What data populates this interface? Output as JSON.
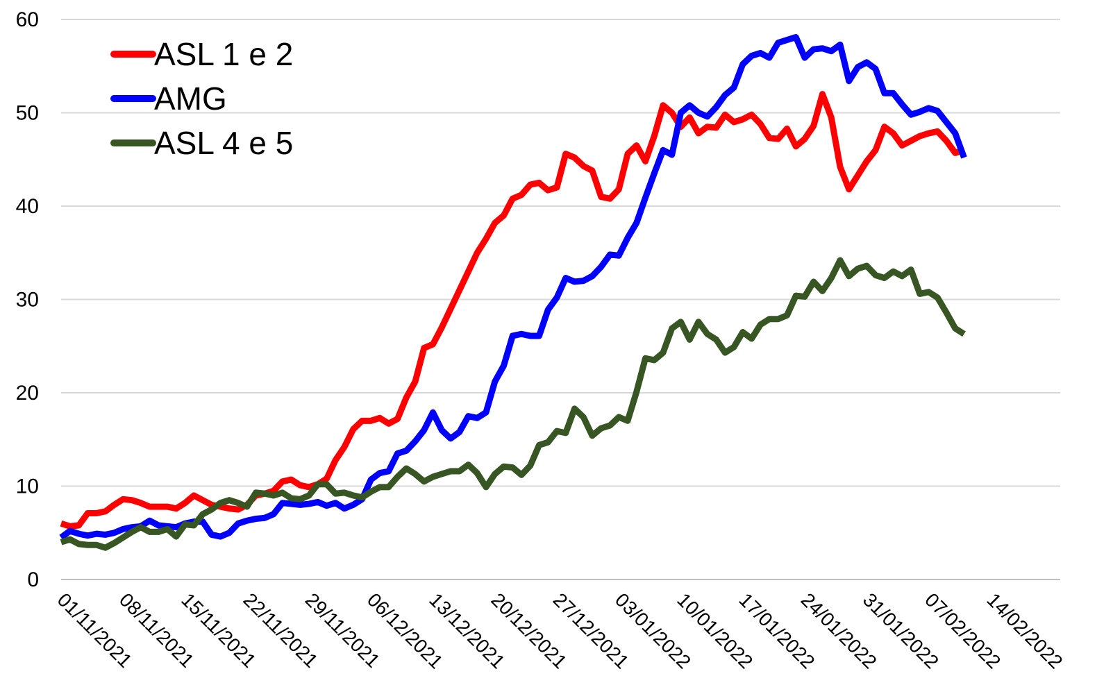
{
  "chart_data": {
    "type": "line",
    "categories": [
      "01/11/2021",
      null,
      null,
      null,
      null,
      null,
      null,
      "08/11/2021",
      null,
      null,
      null,
      null,
      null,
      null,
      "15/11/2021",
      null,
      null,
      null,
      null,
      null,
      null,
      "22/11/2021",
      null,
      null,
      null,
      null,
      null,
      null,
      "29/11/2021",
      null,
      null,
      null,
      null,
      null,
      null,
      "06/12/2021",
      null,
      null,
      null,
      null,
      null,
      null,
      "13/12/2021",
      null,
      null,
      null,
      null,
      null,
      null,
      "20/12/2021",
      null,
      null,
      null,
      null,
      null,
      null,
      "27/12/2021",
      null,
      null,
      null,
      null,
      null,
      null,
      "03/01/2022",
      null,
      null,
      null,
      null,
      null,
      null,
      "10/01/2022",
      null,
      null,
      null,
      null,
      null,
      null,
      "17/01/2022",
      null,
      null,
      null,
      null,
      null,
      null,
      "24/01/2022",
      null,
      null,
      null,
      null,
      null,
      null,
      "31/01/2022",
      null,
      null,
      null,
      null,
      null,
      null,
      "07/02/2022",
      null,
      null,
      null,
      null,
      null,
      null,
      "14/02/2022"
    ],
    "series": [
      {
        "name": "ASL 1 e 2",
        "color": "#ff0000",
        "values": [
          6.0,
          5.7,
          5.8,
          7.1,
          7.1,
          7.3,
          8.0,
          8.6,
          8.5,
          8.2,
          7.8,
          7.8,
          7.8,
          7.6,
          8.2,
          9.0,
          8.5,
          8.0,
          7.8,
          7.6,
          7.5,
          8.0,
          9.0,
          9.2,
          9.5,
          10.5,
          10.7,
          10.1,
          9.9,
          10.2,
          10.8,
          12.8,
          14.2,
          16.1,
          17.0,
          17.0,
          17.3,
          16.7,
          17.2,
          19.5,
          21.2,
          24.8,
          25.2,
          27.0,
          29.0,
          31.0,
          33.0,
          35.0,
          36.5,
          38.2,
          39.0,
          40.8,
          41.2,
          42.3,
          42.5,
          41.7,
          42.0,
          45.6,
          45.2,
          44.3,
          43.8,
          41.0,
          40.8,
          41.8,
          45.6,
          46.5,
          44.8,
          47.5,
          50.8,
          50.0,
          48.5,
          49.5,
          47.8,
          48.5,
          48.4,
          49.8,
          49.0,
          49.3,
          49.8,
          48.8,
          47.3,
          47.2,
          48.3,
          46.4,
          47.2,
          48.6,
          52.0,
          49.5,
          44.2,
          41.8,
          43.3,
          44.8,
          46.0,
          48.5,
          47.8,
          46.5,
          47.0,
          47.5,
          47.8,
          48.0,
          47.0,
          45.7,
          46.0,
          null,
          null,
          null
        ]
      },
      {
        "name": "AMG",
        "color": "#0000ff",
        "values": [
          4.5,
          5.2,
          4.9,
          4.7,
          4.9,
          4.8,
          5.0,
          5.4,
          5.6,
          5.7,
          6.3,
          5.8,
          5.7,
          5.6,
          6.0,
          6.2,
          6.2,
          4.8,
          4.6,
          5.0,
          6.0,
          6.3,
          6.5,
          6.6,
          7.0,
          8.2,
          8.1,
          8.0,
          8.1,
          8.3,
          7.9,
          8.2,
          7.6,
          8.0,
          8.6,
          10.7,
          11.4,
          11.6,
          13.5,
          13.8,
          14.8,
          16.0,
          17.9,
          16.0,
          15.1,
          15.8,
          17.5,
          17.3,
          17.9,
          21.2,
          22.9,
          26.1,
          26.3,
          26.1,
          26.1,
          28.9,
          30.2,
          32.3,
          31.9,
          32.0,
          32.5,
          33.5,
          34.8,
          34.7,
          36.6,
          38.2,
          40.9,
          43.5,
          46.0,
          45.5,
          50.0,
          50.8,
          50.0,
          49.6,
          50.6,
          51.9,
          52.7,
          55.2,
          56.1,
          56.4,
          55.9,
          57.5,
          57.8,
          58.1,
          55.9,
          56.8,
          56.9,
          56.6,
          57.3,
          53.4,
          54.9,
          55.4,
          54.7,
          52.1,
          52.1,
          50.9,
          49.8,
          50.1,
          50.5,
          50.2,
          49.0,
          47.8,
          45.2,
          null,
          null,
          null
        ]
      },
      {
        "name": "ASL 4 e 5",
        "color": "#375623",
        "values": [
          4.0,
          4.3,
          3.8,
          3.7,
          3.7,
          3.4,
          3.9,
          4.5,
          5.1,
          5.6,
          5.1,
          5.1,
          5.4,
          4.6,
          5.9,
          5.8,
          7.0,
          7.5,
          8.2,
          8.5,
          8.2,
          7.8,
          9.3,
          9.2,
          9.0,
          9.3,
          8.7,
          8.6,
          9.0,
          10.2,
          10.2,
          9.2,
          9.3,
          9.0,
          8.8,
          9.4,
          9.9,
          9.9,
          11.0,
          11.9,
          11.3,
          10.5,
          11.0,
          11.3,
          11.6,
          11.6,
          12.3,
          11.4,
          9.9,
          11.3,
          12.1,
          12.0,
          11.2,
          12.2,
          14.4,
          14.7,
          15.9,
          15.7,
          18.3,
          17.4,
          15.4,
          16.2,
          16.5,
          17.4,
          17.0,
          20.1,
          23.7,
          23.5,
          24.3,
          26.9,
          27.6,
          25.7,
          27.6,
          26.3,
          25.7,
          24.3,
          24.9,
          26.5,
          25.8,
          27.3,
          27.9,
          27.9,
          28.3,
          30.4,
          30.3,
          31.9,
          30.9,
          32.3,
          34.2,
          32.5,
          33.3,
          33.6,
          32.6,
          32.3,
          33.0,
          32.5,
          33.2,
          30.6,
          30.8,
          30.2,
          28.6,
          26.9,
          26.3,
          null,
          null,
          null
        ]
      }
    ],
    "ylim": [
      0,
      60
    ],
    "yticks": [
      0,
      10,
      20,
      30,
      40,
      50,
      60
    ],
    "grid": true,
    "legend": "top-left"
  }
}
